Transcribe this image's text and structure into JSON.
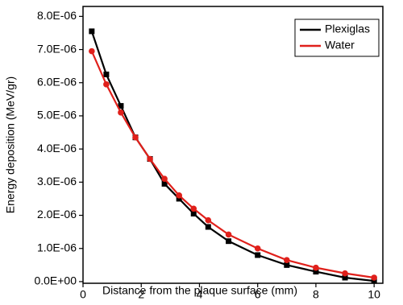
{
  "chart_data": {
    "type": "line",
    "x_label": "Distance from the plaque surface (mm)",
    "y_label": "Energy deposition (MeV/gr)",
    "x": [
      0.3,
      0.8,
      1.3,
      1.8,
      2.3,
      2.8,
      3.3,
      3.8,
      4.3,
      5,
      6,
      7,
      8,
      9,
      10
    ],
    "series": [
      {
        "name": "Plexiglas",
        "color": "#000000",
        "marker": "square",
        "values": [
          7.55e-06,
          6.25e-06,
          5.3e-06,
          4.35e-06,
          3.7e-06,
          2.95e-06,
          2.5e-06,
          2.05e-06,
          1.65e-06,
          1.22e-06,
          8e-07,
          5e-07,
          3e-07,
          1.2e-07,
          2e-08
        ]
      },
      {
        "name": "Water",
        "color": "#e0201b",
        "marker": "circle",
        "values": [
          6.95e-06,
          5.95e-06,
          5.1e-06,
          4.35e-06,
          3.7e-06,
          3.1e-06,
          2.6e-06,
          2.2e-06,
          1.85e-06,
          1.42e-06,
          1e-06,
          6.5e-07,
          4.2e-07,
          2.5e-07,
          1.2e-07
        ]
      }
    ],
    "xlim": [
      0,
      10.3
    ],
    "xticks": [
      0,
      2,
      4,
      6,
      8,
      10
    ],
    "ylim": [
      -5e-08,
      8.3e-06
    ],
    "yticks": [
      {
        "value": 0,
        "label": "0.0E+00"
      },
      {
        "value": 1e-06,
        "label": "1.0E-06"
      },
      {
        "value": 2e-06,
        "label": "2.0E-06"
      },
      {
        "value": 3e-06,
        "label": "3.0E-06"
      },
      {
        "value": 4e-06,
        "label": "4.0E-06"
      },
      {
        "value": 5e-06,
        "label": "5.0E-06"
      },
      {
        "value": 6e-06,
        "label": "6.0E-06"
      },
      {
        "value": 7e-06,
        "label": "7.0E-06"
      },
      {
        "value": 8e-06,
        "label": "8.0E-06"
      }
    ],
    "grid": false,
    "legend": "upper right"
  }
}
